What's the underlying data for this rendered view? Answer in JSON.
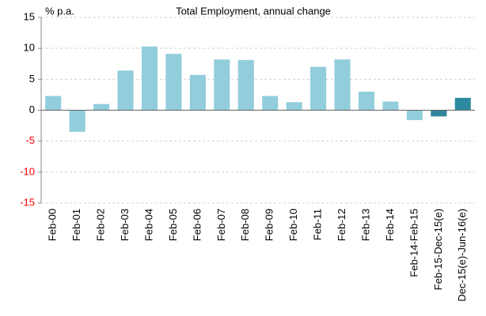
{
  "chart_data": {
    "type": "bar",
    "title": "Total Employment, annual change",
    "y_label": "% p.a.",
    "categories": [
      "Feb-00",
      "Feb-01",
      "Feb-02",
      "Feb-03",
      "Feb-04",
      "Feb-05",
      "Feb-06",
      "Feb-07",
      "Feb-08",
      "Feb-09",
      "Feb-10",
      "Feb-11",
      "Feb-12",
      "Feb-13",
      "Feb-14",
      "Feb-14-Feb-15",
      "Feb-15-Dec-15(e)",
      "Dec-15(e)-Jun-16(e)"
    ],
    "values": [
      2.3,
      -3.5,
      1.0,
      6.4,
      10.3,
      9.1,
      5.7,
      8.2,
      8.1,
      2.3,
      1.3,
      7.0,
      8.2,
      3.0,
      1.4,
      -1.6,
      -1.0,
      2.0
    ],
    "colors": [
      "#92cddc",
      "#92cddc",
      "#92cddc",
      "#92cddc",
      "#92cddc",
      "#92cddc",
      "#92cddc",
      "#92cddc",
      "#92cddc",
      "#92cddc",
      "#92cddc",
      "#92cddc",
      "#92cddc",
      "#92cddc",
      "#92cddc",
      "#92cddc",
      "#31859c",
      "#2e8aa0"
    ],
    "ylim": [
      -15,
      15
    ],
    "yticks": [
      -15,
      -10,
      -5,
      0,
      5,
      10,
      15
    ],
    "grid": true,
    "negative_tick_color": "#ff0000"
  }
}
